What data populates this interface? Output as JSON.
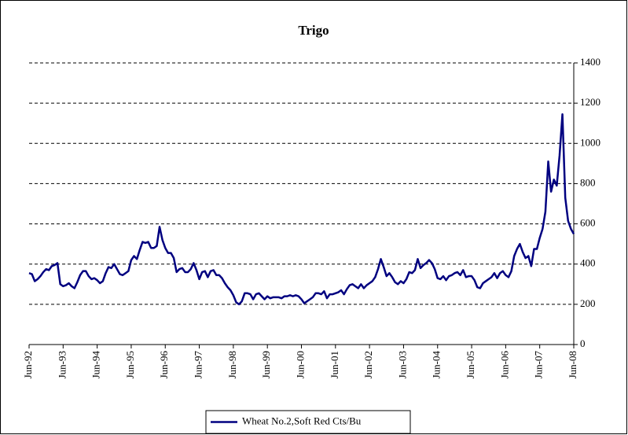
{
  "chart_data": {
    "type": "line",
    "title": "Trigo",
    "categories": [
      "Jun-92",
      null,
      null,
      null,
      null,
      null,
      null,
      null,
      null,
      null,
      null,
      null,
      "Jun-93",
      null,
      null,
      null,
      null,
      null,
      null,
      null,
      null,
      null,
      null,
      null,
      "Jun-94",
      null,
      null,
      null,
      null,
      null,
      null,
      null,
      null,
      null,
      null,
      null,
      "Jun-95",
      null,
      null,
      null,
      null,
      null,
      null,
      null,
      null,
      null,
      null,
      null,
      "Jun-96",
      null,
      null,
      null,
      null,
      null,
      null,
      null,
      null,
      null,
      null,
      null,
      "Jun-97",
      null,
      null,
      null,
      null,
      null,
      null,
      null,
      null,
      null,
      null,
      null,
      "Jun-98",
      null,
      null,
      null,
      null,
      null,
      null,
      null,
      null,
      null,
      null,
      null,
      "Jun-99",
      null,
      null,
      null,
      null,
      null,
      null,
      null,
      null,
      null,
      null,
      null,
      "Jun-00",
      null,
      null,
      null,
      null,
      null,
      null,
      null,
      null,
      null,
      null,
      null,
      "Jun-01",
      null,
      null,
      null,
      null,
      null,
      null,
      null,
      null,
      null,
      null,
      null,
      "Jun-02",
      null,
      null,
      null,
      null,
      null,
      null,
      null,
      null,
      null,
      null,
      null,
      "Jun-03",
      null,
      null,
      null,
      null,
      null,
      null,
      null,
      null,
      null,
      null,
      null,
      "Jun-04",
      null,
      null,
      null,
      null,
      null,
      null,
      null,
      null,
      null,
      null,
      null,
      "Jun-05",
      null,
      null,
      null,
      null,
      null,
      null,
      null,
      null,
      null,
      null,
      null,
      "Jun-06",
      null,
      null,
      null,
      null,
      null,
      null,
      null,
      null,
      null,
      null,
      null,
      "Jun-07",
      null,
      null,
      null,
      null,
      null,
      null,
      null,
      null,
      null,
      null,
      null,
      "Jun-08"
    ],
    "series": [
      {
        "name": "Wheat No.2,Soft Red Cts/Bu",
        "color": "#000080",
        "values": [
          355,
          350,
          315,
          325,
          340,
          360,
          375,
          370,
          390,
          395,
          405,
          300,
          290,
          295,
          305,
          290,
          280,
          310,
          345,
          365,
          365,
          340,
          325,
          330,
          320,
          305,
          315,
          355,
          385,
          380,
          400,
          375,
          350,
          345,
          355,
          365,
          420,
          440,
          425,
          470,
          510,
          505,
          510,
          480,
          480,
          490,
          585,
          520,
          480,
          455,
          455,
          430,
          360,
          375,
          380,
          360,
          360,
          375,
          405,
          370,
          325,
          360,
          365,
          335,
          365,
          370,
          345,
          345,
          330,
          305,
          285,
          270,
          245,
          210,
          200,
          215,
          255,
          255,
          250,
          225,
          250,
          255,
          240,
          225,
          240,
          230,
          235,
          235,
          235,
          230,
          240,
          240,
          245,
          240,
          245,
          240,
          225,
          205,
          215,
          225,
          235,
          255,
          255,
          250,
          265,
          230,
          250,
          250,
          255,
          260,
          270,
          250,
          275,
          295,
          300,
          290,
          280,
          300,
          280,
          295,
          305,
          315,
          335,
          375,
          425,
          385,
          340,
          355,
          335,
          310,
          300,
          315,
          305,
          325,
          360,
          355,
          370,
          425,
          380,
          395,
          405,
          420,
          405,
          375,
          330,
          325,
          340,
          320,
          340,
          345,
          355,
          360,
          345,
          370,
          335,
          340,
          340,
          320,
          285,
          280,
          305,
          315,
          325,
          335,
          355,
          330,
          355,
          365,
          345,
          335,
          365,
          440,
          475,
          500,
          460,
          430,
          440,
          390,
          475,
          475,
          530,
          575,
          660,
          910,
          760,
          820,
          790,
          940,
          1145,
          730,
          615,
          575,
          550
        ]
      }
    ],
    "ylim": [
      0,
      1400
    ],
    "yticks": [
      0,
      200,
      400,
      600,
      800,
      1000,
      1200,
      1400
    ],
    "grid": true,
    "legend": "bottom"
  }
}
